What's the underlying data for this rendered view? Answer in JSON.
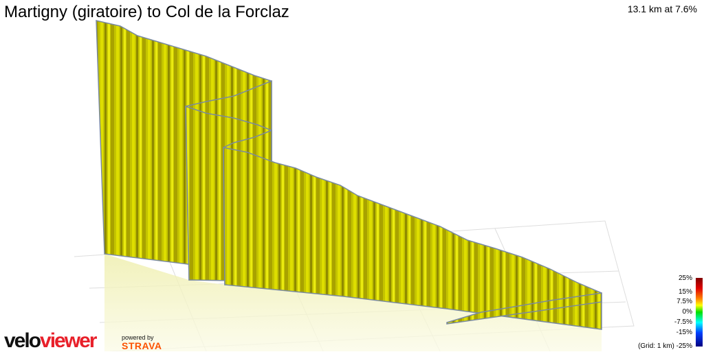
{
  "header": {
    "title": "Martigny (giratoire) to Col de la Forclaz",
    "summary": "13.1 km at 7.6%"
  },
  "legend": {
    "labels": [
      "25%",
      "15%",
      "7.5%",
      "0%",
      "-7.5%",
      "-15%",
      "-25%"
    ],
    "grid_note": "(Grid: 1 km)"
  },
  "branding": {
    "logo_part1": "velo",
    "logo_part2": "viewer",
    "powered_by": "powered by",
    "strava": "STRAVA"
  },
  "colors": {
    "wall": "#c8c800",
    "ridge": "#7a8aa0",
    "logo_red": "#e8202a",
    "strava": "#fc5200"
  }
}
